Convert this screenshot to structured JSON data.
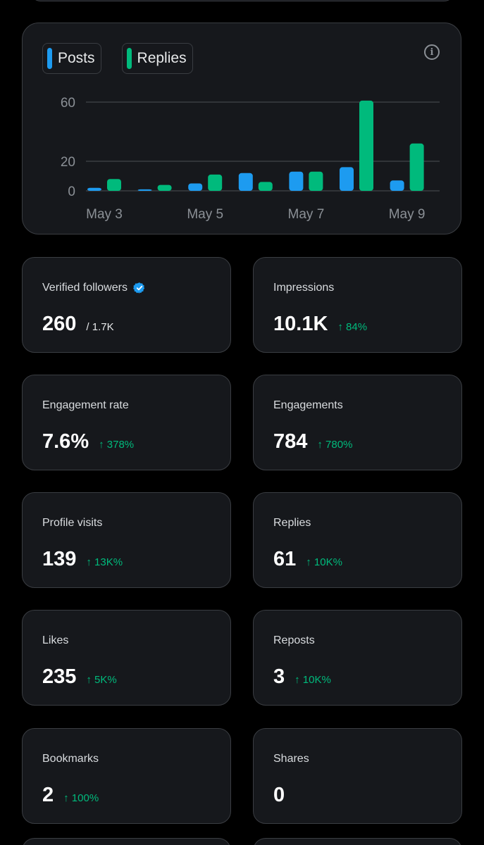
{
  "chart_data": {
    "type": "bar",
    "categories": [
      "May 3",
      "May 4",
      "May 5",
      "May 6",
      "May 7",
      "May 8",
      "May 9"
    ],
    "series": [
      {
        "name": "Posts",
        "color": "#1d9bf0",
        "values": [
          2,
          1,
          5,
          12,
          13,
          16,
          7
        ]
      },
      {
        "name": "Replies",
        "color": "#00ba7c",
        "values": [
          8,
          4,
          11,
          6,
          13,
          61,
          32
        ]
      }
    ],
    "x_tick_labels": [
      "May 3",
      "May 5",
      "May 7",
      "May 9"
    ],
    "y_ticks": [
      0,
      20,
      60
    ],
    "ylim": [
      0,
      60
    ],
    "grid": true,
    "legend_position": "top-left"
  },
  "legend": {
    "posts_label": "Posts",
    "replies_label": "Replies"
  },
  "icons": {
    "info": "info-icon",
    "verified": "verified-badge-icon"
  },
  "stats": {
    "verified_followers": {
      "label": "Verified followers",
      "value": "260",
      "sub": "/ 1.7K"
    },
    "impressions": {
      "label": "Impressions",
      "value": "10.1K",
      "change": "↑ 84%"
    },
    "engagement_rate": {
      "label": "Engagement rate",
      "value": "7.6%",
      "change": "↑ 378%"
    },
    "engagements": {
      "label": "Engagements",
      "value": "784",
      "change": "↑ 780%"
    },
    "profile_visits": {
      "label": "Profile visits",
      "value": "139",
      "change": "↑ 13K%"
    },
    "replies": {
      "label": "Replies",
      "value": "61",
      "change": "↑ 10K%"
    },
    "likes": {
      "label": "Likes",
      "value": "235",
      "change": "↑ 5K%"
    },
    "reposts": {
      "label": "Reposts",
      "value": "3",
      "change": "↑ 10K%"
    },
    "bookmarks": {
      "label": "Bookmarks",
      "value": "2",
      "change": "↑ 100%"
    },
    "shares": {
      "label": "Shares",
      "value": "0"
    }
  },
  "colors": {
    "background": "#000000",
    "card": "#16181c",
    "border": "#3a3d42",
    "posts": "#1d9bf0",
    "replies": "#00ba7c",
    "positive": "#00ba7c"
  }
}
